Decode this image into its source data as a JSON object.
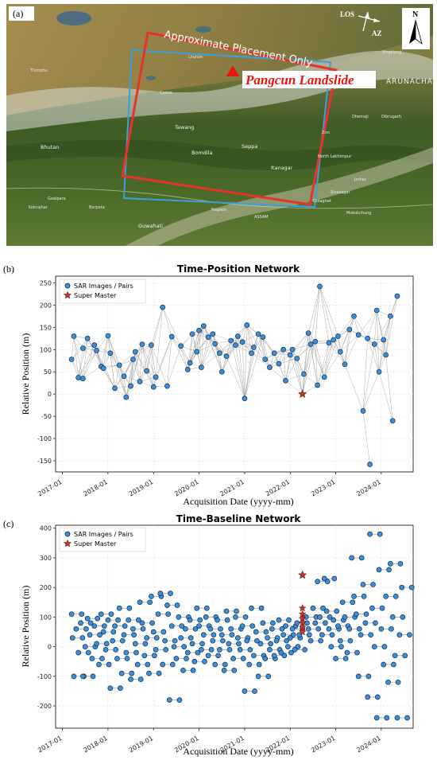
{
  "panel_a": {
    "label": "(a)",
    "placement_note": "Approximate Placement Only",
    "landslide_label": "Pangcun Landslide",
    "los_label": "LOS",
    "az_label": "AZ",
    "north_label": "N",
    "state_label": "ARUNACHAL PRADESH",
    "place_labels": [
      "Thimphu",
      "Bhutan",
      "Tawang",
      "Bomdila",
      "Seppa",
      "Itanagar",
      "North Lakhimpur",
      "Ziro",
      "Dhemaji",
      "Dibrugarh",
      "Jorhat",
      "Guwahati",
      "Barpeta",
      "Nagaon",
      "Kokrajhar",
      "Mokokchung",
      "ASSAM",
      "Cuona",
      "Lhunze",
      "Yingkiong",
      "Sivasagar",
      "Golaghat",
      "Goalpara"
    ],
    "colors": {
      "red_frame": "#e8322d",
      "blue_frame": "#3aa0dc",
      "landslide_text": "#e8140e"
    }
  },
  "panel_b": {
    "label": "(b)"
  },
  "panel_c": {
    "label": "(c)"
  },
  "chart_data": [
    {
      "type": "scatter",
      "title": "Time-Position Network",
      "xlabel": "Acquisition Date (yyyy-mm)",
      "ylabel": "Relative Position (m)",
      "xlim": [
        2016.85,
        2024.7
      ],
      "ylim": [
        -175,
        265
      ],
      "xticks": [
        2017,
        2018,
        2019,
        2020,
        2021,
        2022,
        2023,
        2024
      ],
      "xtick_labels": [
        "2017-01",
        "2018-01",
        "2019-01",
        "2020-01",
        "2021-01",
        "2022-01",
        "2023-01",
        "2024-01"
      ],
      "yticks": [
        -150,
        -100,
        -50,
        0,
        50,
        100,
        150,
        200,
        250
      ],
      "grid": true,
      "legend": {
        "placement": "top-left",
        "entries": [
          "SAR Images / Pairs",
          "Super Master"
        ]
      },
      "colors": {
        "point": "#3c8fd9",
        "master": "#c0392b",
        "edge": "#9a9a9a"
      },
      "super_master": {
        "x": 2022.27,
        "y": 0
      },
      "points": [
        [
          2017.2,
          78
        ],
        [
          2017.25,
          130
        ],
        [
          2017.35,
          37
        ],
        [
          2017.45,
          35
        ],
        [
          2017.45,
          103
        ],
        [
          2017.55,
          125
        ],
        [
          2017.7,
          110
        ],
        [
          2017.75,
          98
        ],
        [
          2017.85,
          62
        ],
        [
          2017.9,
          58
        ],
        [
          2018.0,
          131
        ],
        [
          2018.05,
          92
        ],
        [
          2018.15,
          13
        ],
        [
          2018.25,
          65
        ],
        [
          2018.35,
          40
        ],
        [
          2018.4,
          -7
        ],
        [
          2018.5,
          18
        ],
        [
          2018.55,
          78
        ],
        [
          2018.6,
          95
        ],
        [
          2018.7,
          28
        ],
        [
          2018.75,
          112
        ],
        [
          2018.85,
          52
        ],
        [
          2018.95,
          110
        ],
        [
          2019.0,
          16
        ],
        [
          2019.05,
          38
        ],
        [
          2019.2,
          195
        ],
        [
          2019.3,
          18
        ],
        [
          2019.4,
          129
        ],
        [
          2019.6,
          108
        ],
        [
          2019.75,
          55
        ],
        [
          2019.8,
          70
        ],
        [
          2019.85,
          135
        ],
        [
          2019.95,
          95
        ],
        [
          2020.0,
          143
        ],
        [
          2020.05,
          60
        ],
        [
          2020.1,
          153
        ],
        [
          2020.2,
          128
        ],
        [
          2020.3,
          135
        ],
        [
          2020.35,
          113
        ],
        [
          2020.45,
          92
        ],
        [
          2020.5,
          50
        ],
        [
          2020.6,
          85
        ],
        [
          2020.7,
          120
        ],
        [
          2020.8,
          110
        ],
        [
          2020.85,
          130
        ],
        [
          2020.95,
          117
        ],
        [
          2021.05,
          155
        ],
        [
          2021.15,
          92
        ],
        [
          2021.2,
          105
        ],
        [
          2021.3,
          135
        ],
        [
          2021.4,
          128
        ],
        [
          2021.45,
          78
        ],
        [
          2021.55,
          60
        ],
        [
          2021.65,
          92
        ],
        [
          2021.75,
          68
        ],
        [
          2021.85,
          100
        ],
        [
          2021.9,
          30
        ],
        [
          2022.0,
          88
        ],
        [
          2022.05,
          100
        ],
        [
          2022.15,
          80
        ],
        [
          2022.3,
          45
        ],
        [
          2022.4,
          137
        ],
        [
          2022.45,
          112
        ],
        [
          2022.55,
          118
        ],
        [
          2022.65,
          242
        ],
        [
          2022.75,
          38
        ],
        [
          2022.85,
          115
        ],
        [
          2022.95,
          122
        ],
        [
          2023.05,
          130
        ],
        [
          2023.1,
          95
        ],
        [
          2023.2,
          67
        ],
        [
          2023.3,
          145
        ],
        [
          2023.4,
          175
        ],
        [
          2023.5,
          133
        ],
        [
          2023.6,
          -38
        ],
        [
          2023.7,
          125
        ],
        [
          2023.75,
          -158
        ],
        [
          2023.85,
          112
        ],
        [
          2023.9,
          188
        ],
        [
          2023.95,
          50
        ],
        [
          2024.05,
          122
        ],
        [
          2024.1,
          88
        ],
        [
          2024.2,
          175
        ],
        [
          2024.25,
          -60
        ],
        [
          2024.35,
          220
        ],
        [
          2021.0,
          -10
        ],
        [
          2022.6,
          20
        ]
      ]
    },
    {
      "type": "scatter",
      "title": "Time-Baseline Network",
      "xlabel": "Acquisition Date (yyyy-mm)",
      "ylabel": "Relative Position (m)",
      "xlim": [
        2016.85,
        2024.7
      ],
      "ylim": [
        -275,
        410
      ],
      "xticks": [
        2017,
        2018,
        2019,
        2020,
        2021,
        2022,
        2023,
        2024
      ],
      "xtick_labels": [
        "2017-01",
        "2018-01",
        "2019-01",
        "2020-01",
        "2021-01",
        "2022-01",
        "2023-01",
        "2024-01"
      ],
      "yticks": [
        -200,
        -100,
        0,
        100,
        200,
        300,
        400
      ],
      "grid": true,
      "legend": {
        "placement": "top-left",
        "entries": [
          "SAR Images / Pairs",
          "Super Master"
        ]
      },
      "colors": {
        "point": "#3c8fd9",
        "master": "#c0392b",
        "edge": "#9a9a9a"
      },
      "super_master": {
        "x": 2022.27,
        "y": 242
      },
      "master_column": [
        130,
        110,
        95,
        80,
        65,
        50
      ],
      "points": [
        [
          2017.2,
          110
        ],
        [
          2017.22,
          30
        ],
        [
          2017.25,
          -100
        ],
        [
          2017.3,
          60
        ],
        [
          2017.35,
          -20
        ],
        [
          2017.4,
          80
        ],
        [
          2017.45,
          -100
        ],
        [
          2017.5,
          0
        ],
        [
          2017.55,
          95
        ],
        [
          2017.6,
          40
        ],
        [
          2017.65,
          -40
        ],
        [
          2017.7,
          70
        ],
        [
          2017.75,
          10
        ],
        [
          2017.8,
          -60
        ],
        [
          2017.85,
          110
        ],
        [
          2017.9,
          50
        ],
        [
          2017.95,
          -10
        ],
        [
          2018.0,
          90
        ],
        [
          2018.05,
          -140
        ],
        [
          2018.1,
          20
        ],
        [
          2018.15,
          70
        ],
        [
          2018.2,
          -40
        ],
        [
          2018.25,
          130
        ],
        [
          2018.3,
          -90
        ],
        [
          2018.35,
          40
        ],
        [
          2018.4,
          -20
        ],
        [
          2018.45,
          90
        ],
        [
          2018.5,
          -110
        ],
        [
          2018.55,
          60
        ],
        [
          2018.6,
          10
        ],
        [
          2018.65,
          -60
        ],
        [
          2018.7,
          150
        ],
        [
          2018.75,
          80
        ],
        [
          2018.8,
          -30
        ],
        [
          2018.85,
          30
        ],
        [
          2018.9,
          -90
        ],
        [
          2018.95,
          170
        ],
        [
          2019.0,
          50
        ],
        [
          2019.05,
          -10
        ],
        [
          2019.1,
          110
        ],
        [
          2019.15,
          180
        ],
        [
          2019.2,
          -60
        ],
        [
          2019.25,
          20
        ],
        [
          2019.3,
          140
        ],
        [
          2019.35,
          -180
        ],
        [
          2019.4,
          70
        ],
        [
          2019.45,
          0
        ],
        [
          2019.5,
          -40
        ],
        [
          2019.55,
          100
        ],
        [
          2019.6,
          30
        ],
        [
          2019.65,
          -80
        ],
        [
          2019.7,
          60
        ],
        [
          2019.75,
          -20
        ],
        [
          2019.8,
          90
        ],
        [
          2019.85,
          10
        ],
        [
          2019.9,
          -50
        ],
        [
          2019.95,
          130
        ],
        [
          2020.0,
          70
        ],
        [
          2020.05,
          -10
        ],
        [
          2020.1,
          40
        ],
        [
          2020.15,
          100
        ],
        [
          2020.2,
          -30
        ],
        [
          2020.25,
          60
        ],
        [
          2020.3,
          20
        ],
        [
          2020.35,
          -60
        ],
        [
          2020.4,
          90
        ],
        [
          2020.45,
          -10
        ],
        [
          2020.5,
          40
        ],
        [
          2020.55,
          -80
        ],
        [
          2020.6,
          120
        ],
        [
          2020.65,
          10
        ],
        [
          2020.7,
          60
        ],
        [
          2020.75,
          -40
        ],
        [
          2020.8,
          100
        ],
        [
          2020.85,
          30
        ],
        [
          2020.9,
          -10
        ],
        [
          2020.95,
          70
        ],
        [
          2021.0,
          -150
        ],
        [
          2021.05,
          20
        ],
        [
          2021.1,
          -60
        ],
        [
          2021.15,
          130
        ],
        [
          2021.2,
          -30
        ],
        [
          2021.25,
          50
        ],
        [
          2021.3,
          -100
        ],
        [
          2021.35,
          10
        ],
        [
          2021.4,
          80
        ],
        [
          2021.45,
          -40
        ],
        [
          2021.5,
          30
        ],
        [
          2021.55,
          -10
        ],
        [
          2021.6,
          60
        ],
        [
          2021.65,
          -30
        ],
        [
          2021.7,
          20
        ],
        [
          2021.75,
          90
        ],
        [
          2021.8,
          -20
        ],
        [
          2021.85,
          40
        ],
        [
          2021.9,
          70
        ],
        [
          2021.95,
          0
        ],
        [
          2022.0,
          30
        ],
        [
          2022.05,
          60
        ],
        [
          2022.1,
          -10
        ],
        [
          2022.15,
          80
        ],
        [
          2022.2,
          40
        ],
        [
          2022.35,
          100
        ],
        [
          2022.4,
          60
        ],
        [
          2022.45,
          20
        ],
        [
          2022.5,
          130
        ],
        [
          2022.55,
          80
        ],
        [
          2022.6,
          220
        ],
        [
          2022.65,
          100
        ],
        [
          2022.7,
          40
        ],
        [
          2022.75,
          230
        ],
        [
          2022.8,
          120
        ],
        [
          2022.85,
          60
        ],
        [
          2022.9,
          0
        ],
        [
          2022.95,
          90
        ],
        [
          2023.0,
          -40
        ],
        [
          2023.05,
          70
        ],
        [
          2023.1,
          20
        ],
        [
          2023.15,
          150
        ],
        [
          2023.2,
          100
        ],
        [
          2023.25,
          -20
        ],
        [
          2023.3,
          60
        ],
        [
          2023.35,
          300
        ],
        [
          2023.4,
          170
        ],
        [
          2023.45,
          110
        ],
        [
          2023.5,
          -100
        ],
        [
          2023.55,
          40
        ],
        [
          2023.6,
          210
        ],
        [
          2023.65,
          80
        ],
        [
          2023.7,
          -170
        ],
        [
          2023.75,
          380
        ],
        [
          2023.8,
          130
        ],
        [
          2023.85,
          0
        ],
        [
          2023.9,
          -240
        ],
        [
          2023.95,
          260
        ],
        [
          2024.0,
          60
        ],
        [
          2024.05,
          -60
        ],
        [
          2024.1,
          170
        ],
        [
          2024.15,
          -120
        ],
        [
          2024.2,
          280
        ],
        [
          2024.25,
          100
        ],
        [
          2024.3,
          -30
        ],
        [
          2024.35,
          -240
        ],
        [
          2024.4,
          40
        ],
        [
          2024.45,
          200
        ]
      ]
    }
  ]
}
